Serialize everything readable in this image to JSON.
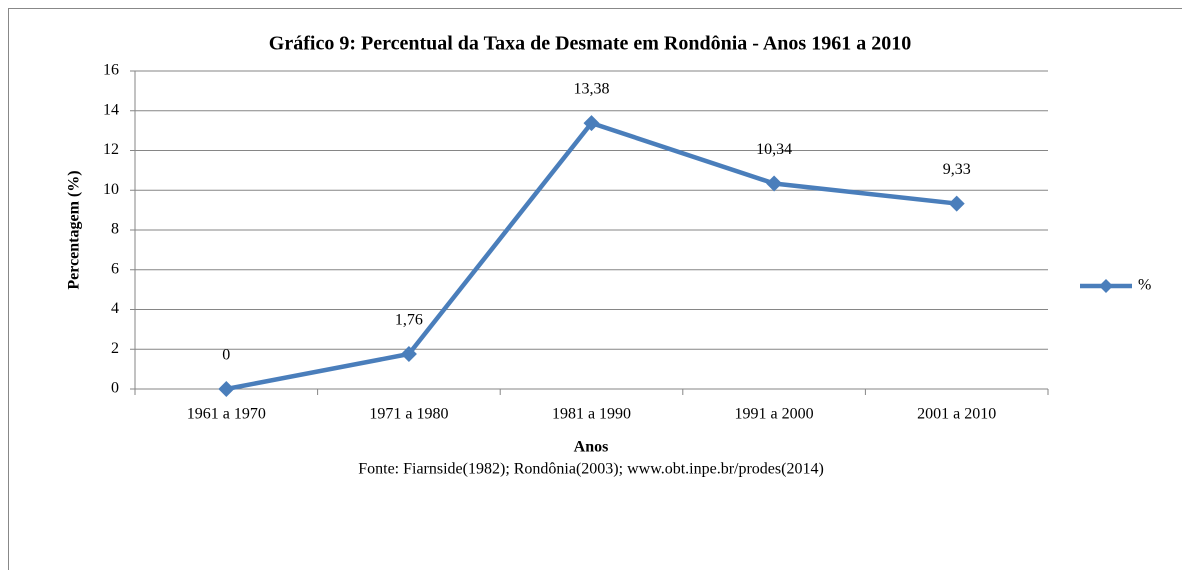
{
  "chart_data": {
    "type": "line",
    "title": "Gráfico 9: Percentual da Taxa de Desmate em Rondônia - Anos 1961 a 2010",
    "xlabel": "Anos",
    "ylabel": "Percentagem (%)",
    "source": "Fonte: Fiarnside(1982); Rondônia(2003); www.obt.inpe.br/prodes(2014)",
    "categories": [
      "1961 a 1970",
      "1971 a 1980",
      "1981 a 1990",
      "1991 a 2000",
      "2001 a 2010"
    ],
    "series": [
      {
        "name": "%",
        "color": "#4a7ebb",
        "values": [
          0,
          1.76,
          13.38,
          10.34,
          9.33
        ],
        "value_labels": [
          "0",
          "1,76",
          "13,38",
          "10,34",
          "9,33"
        ]
      }
    ],
    "ylim": [
      0,
      16
    ],
    "yticks": [
      0,
      2,
      4,
      6,
      8,
      10,
      12,
      14,
      16
    ],
    "grid": true,
    "legend": "right"
  }
}
